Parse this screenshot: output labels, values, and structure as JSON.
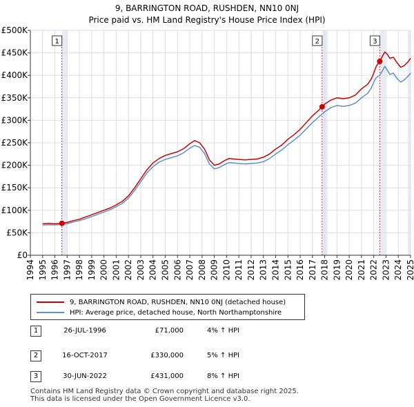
{
  "title_line1": "9, BARRINGTON ROAD, RUSHDEN, NN10 0NJ",
  "title_line2": "Price paid vs. HM Land Registry's House Price Index (HPI)",
  "colors": {
    "property": "#cc0000",
    "hpi": "#5b8fc9",
    "shade": "#e6ecf6"
  },
  "chart_data": {
    "type": "line",
    "title": "9, BARRINGTON ROAD, RUSHDEN, NN10 0NJ - Price paid vs. HM Land Registry's House Price Index (HPI)",
    "xlabel": "",
    "ylabel": "",
    "xlim": [
      1994,
      2025
    ],
    "ylim": [
      0,
      500000
    ],
    "x_ticks": [
      "1994",
      "1995",
      "1996",
      "1997",
      "1998",
      "1999",
      "2000",
      "2001",
      "2002",
      "2003",
      "2004",
      "2005",
      "2006",
      "2007",
      "2008",
      "2009",
      "2010",
      "2011",
      "2012",
      "2013",
      "2014",
      "2015",
      "2016",
      "2017",
      "2018",
      "2019",
      "2020",
      "2021",
      "2022",
      "2023",
      "2024",
      "2025"
    ],
    "y_ticks": [
      {
        "value": 0,
        "label": "£0"
      },
      {
        "value": 50000,
        "label": "£50K"
      },
      {
        "value": 100000,
        "label": "£100K"
      },
      {
        "value": 150000,
        "label": "£150K"
      },
      {
        "value": 200000,
        "label": "£200K"
      },
      {
        "value": 250000,
        "label": "£250K"
      },
      {
        "value": 300000,
        "label": "£300K"
      },
      {
        "value": 350000,
        "label": "£350K"
      },
      {
        "value": 400000,
        "label": "£400K"
      },
      {
        "value": 450000,
        "label": "£450K"
      },
      {
        "value": 500000,
        "label": "£500K"
      }
    ],
    "grid": true,
    "series": [
      {
        "name": "9, BARRINGTON ROAD, RUSHDEN, NN10 0NJ (detached house)",
        "color": "#cc0000",
        "x": [
          1995.0,
          1995.5,
          1996.0,
          1996.57,
          1997.0,
          1997.5,
          1998.0,
          1998.5,
          1999.0,
          1999.5,
          2000.0,
          2000.5,
          2001.0,
          2001.5,
          2002.0,
          2002.5,
          2003.0,
          2003.5,
          2004.0,
          2004.5,
          2005.0,
          2005.5,
          2006.0,
          2006.5,
          2007.0,
          2007.4,
          2007.8,
          2008.2,
          2008.6,
          2009.0,
          2009.4,
          2009.8,
          2010.2,
          2010.6,
          2011.0,
          2011.5,
          2012.0,
          2012.5,
          2013.0,
          2013.5,
          2014.0,
          2014.5,
          2015.0,
          2015.5,
          2016.0,
          2016.5,
          2017.0,
          2017.5,
          2017.79,
          2018.0,
          2018.5,
          2019.0,
          2019.5,
          2020.0,
          2020.5,
          2021.0,
          2021.5,
          2021.8,
          2022.0,
          2022.2,
          2022.49,
          2022.7,
          2022.9,
          2023.1,
          2023.3,
          2023.6,
          2023.9,
          2024.2,
          2024.5,
          2024.8,
          2025.0
        ],
        "y": [
          70000,
          71000,
          70000,
          71000,
          73000,
          77000,
          80000,
          85000,
          90000,
          95000,
          100000,
          105000,
          112000,
          120000,
          132000,
          150000,
          170000,
          190000,
          205000,
          215000,
          222000,
          226000,
          230000,
          237000,
          248000,
          255000,
          250000,
          236000,
          212000,
          200000,
          203000,
          210000,
          215000,
          214000,
          213000,
          212000,
          213000,
          214000,
          218000,
          225000,
          236000,
          245000,
          258000,
          268000,
          280000,
          295000,
          310000,
          322000,
          330000,
          336000,
          345000,
          350000,
          348000,
          350000,
          356000,
          370000,
          380000,
          392000,
          405000,
          420000,
          431000,
          442000,
          452000,
          447000,
          438000,
          440000,
          428000,
          418000,
          422000,
          430000,
          438000
        ]
      },
      {
        "name": "HPI: Average price, detached house, North Northamptonshire",
        "color": "#5b8fc9",
        "x": [
          1995.0,
          1995.5,
          1996.0,
          1996.57,
          1997.0,
          1997.5,
          1998.0,
          1998.5,
          1999.0,
          1999.5,
          2000.0,
          2000.5,
          2001.0,
          2001.5,
          2002.0,
          2002.5,
          2003.0,
          2003.5,
          2004.0,
          2004.5,
          2005.0,
          2005.5,
          2006.0,
          2006.5,
          2007.0,
          2007.4,
          2007.8,
          2008.2,
          2008.6,
          2009.0,
          2009.4,
          2009.8,
          2010.2,
          2010.6,
          2011.0,
          2011.5,
          2012.0,
          2012.5,
          2013.0,
          2013.5,
          2014.0,
          2014.5,
          2015.0,
          2015.5,
          2016.0,
          2016.5,
          2017.0,
          2017.5,
          2017.79,
          2018.0,
          2018.5,
          2019.0,
          2019.5,
          2020.0,
          2020.5,
          2021.0,
          2021.5,
          2021.8,
          2022.0,
          2022.2,
          2022.49,
          2022.7,
          2022.9,
          2023.1,
          2023.3,
          2023.6,
          2023.9,
          2024.2,
          2024.5,
          2024.8,
          2025.0
        ],
        "y": [
          67000,
          68000,
          67500,
          68500,
          70000,
          74000,
          77000,
          81000,
          86000,
          91000,
          96000,
          101000,
          108000,
          115000,
          127000,
          144000,
          163000,
          183000,
          197000,
          207000,
          213000,
          217000,
          221000,
          228000,
          238000,
          244000,
          240000,
          226000,
          203000,
          192000,
          195000,
          201000,
          206000,
          205000,
          204000,
          203000,
          204000,
          205000,
          208000,
          215000,
          225000,
          234000,
          246000,
          256000,
          267000,
          281000,
          295000,
          307000,
          314000,
          319000,
          328000,
          333000,
          331000,
          333000,
          338000,
          350000,
          360000,
          372000,
          385000,
          395000,
          400000,
          410000,
          420000,
          412000,
          402000,
          405000,
          393000,
          385000,
          390000,
          398000,
          405000
        ]
      }
    ],
    "sales": [
      {
        "num": "1",
        "x": 1996.57,
        "y": 71000
      },
      {
        "num": "2",
        "x": 2017.79,
        "y": 330000
      },
      {
        "num": "3",
        "x": 2022.49,
        "y": 431000
      }
    ]
  },
  "legend": {
    "property": "9, BARRINGTON ROAD, RUSHDEN, NN10 0NJ (detached house)",
    "hpi": "HPI: Average price, detached house, North Northamptonshire"
  },
  "sales_table": [
    {
      "num": "1",
      "date": "26-JUL-1996",
      "price": "£71,000",
      "hpi": "4% ↑ HPI"
    },
    {
      "num": "2",
      "date": "16-OCT-2017",
      "price": "£330,000",
      "hpi": "5% ↑ HPI"
    },
    {
      "num": "3",
      "date": "30-JUN-2022",
      "price": "£431,000",
      "hpi": "8% ↑ HPI"
    }
  ],
  "footer": "Contains HM Land Registry data © Crown copyright and database right 2025.\nThis data is licensed under the Open Government Licence v3.0."
}
